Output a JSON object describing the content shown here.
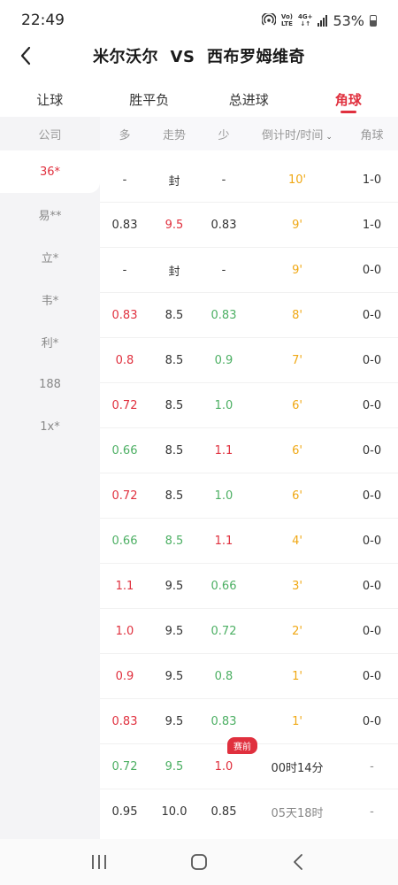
{
  "status": {
    "time": "22:49",
    "net_top": "Vo)",
    "net_bottom": "LTE",
    "net_gen_top": "4G+",
    "net_gen_bottom": "↓↑",
    "battery": "53%"
  },
  "header": {
    "title": "米尔沃尔  VS  西布罗姆维奇"
  },
  "tabs": [
    {
      "label": "让球"
    },
    {
      "label": "胜平负"
    },
    {
      "label": "总进球"
    },
    {
      "label": "角球"
    }
  ],
  "sidebar": {
    "header": "公司",
    "items": [
      "36*",
      "易**",
      "立*",
      "韦*",
      "利*",
      "188",
      "1x*"
    ]
  },
  "table": {
    "headers": [
      "多",
      "走势",
      "少",
      "倒计时/时间",
      "角球"
    ],
    "sort_icon": "⌄",
    "badge": "赛前",
    "rows": [
      {
        "c1": "-",
        "c2": "封",
        "c3": "-",
        "c4": "10'",
        "c5": "1-0"
      },
      {
        "c1": "0.83",
        "c2": "9.5",
        "c3": "0.83",
        "c4": "9'",
        "c5": "1-0"
      },
      {
        "c1": "-",
        "c2": "封",
        "c3": "-",
        "c4": "9'",
        "c5": "0-0"
      },
      {
        "c1": "0.83",
        "c2": "8.5",
        "c3": "0.83",
        "c4": "8'",
        "c5": "0-0"
      },
      {
        "c1": "0.8",
        "c2": "8.5",
        "c3": "0.9",
        "c4": "7'",
        "c5": "0-0"
      },
      {
        "c1": "0.72",
        "c2": "8.5",
        "c3": "1.0",
        "c4": "6'",
        "c5": "0-0"
      },
      {
        "c1": "0.66",
        "c2": "8.5",
        "c3": "1.1",
        "c4": "6'",
        "c5": "0-0"
      },
      {
        "c1": "0.72",
        "c2": "8.5",
        "c3": "1.0",
        "c4": "6'",
        "c5": "0-0"
      },
      {
        "c1": "0.66",
        "c2": "8.5",
        "c3": "1.1",
        "c4": "4'",
        "c5": "0-0"
      },
      {
        "c1": "1.1",
        "c2": "9.5",
        "c3": "0.66",
        "c4": "3'",
        "c5": "0-0"
      },
      {
        "c1": "1.0",
        "c2": "9.5",
        "c3": "0.72",
        "c4": "2'",
        "c5": "0-0"
      },
      {
        "c1": "0.9",
        "c2": "9.5",
        "c3": "0.8",
        "c4": "1'",
        "c5": "0-0"
      },
      {
        "c1": "0.83",
        "c2": "9.5",
        "c3": "0.83",
        "c4": "1'",
        "c5": "0-0"
      },
      {
        "c1": "0.72",
        "c2": "9.5",
        "c3": "1.0",
        "c4": "00时14分",
        "c5": "-"
      },
      {
        "c1": "0.95",
        "c2": "10.0",
        "c3": "0.85",
        "c4": "05天18时",
        "c5": "-"
      }
    ]
  },
  "colors": {
    "accent_red": "#e0303e",
    "green": "#4caf63",
    "orange": "#f0a814"
  }
}
